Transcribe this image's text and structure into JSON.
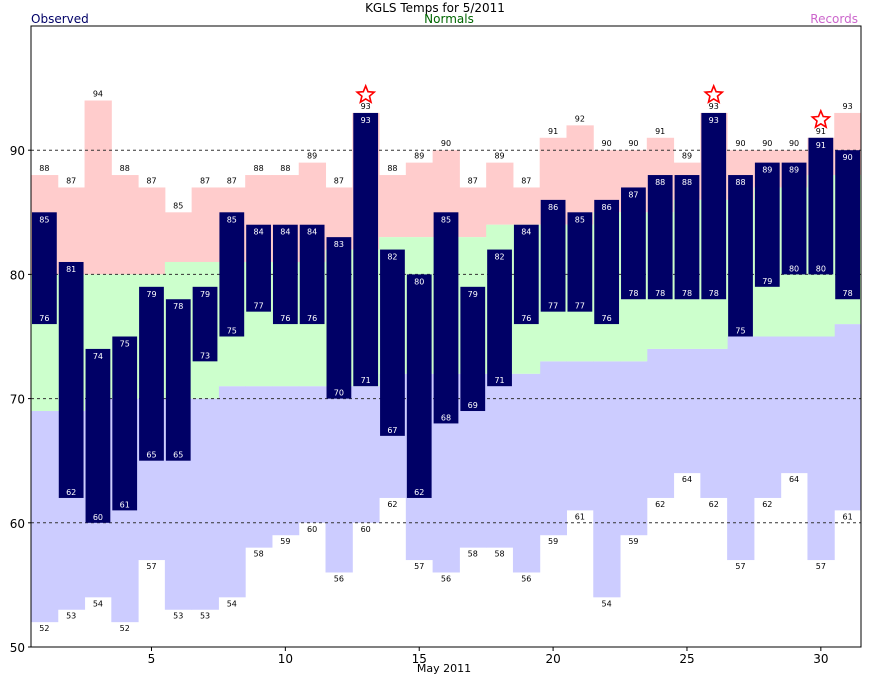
{
  "chart_data": {
    "type": "bar",
    "title": "KGLS Temps for 5/2011",
    "legend": {
      "observed": "Observed",
      "normals": "Normals",
      "records": "Records"
    },
    "xlabel": "May 2011",
    "xlim": [
      1,
      31
    ],
    "ylim": [
      50,
      100
    ],
    "xticks": [
      5,
      10,
      15,
      20,
      25,
      30
    ],
    "yticks": [
      50,
      60,
      70,
      80,
      90
    ],
    "gridlines_y": [
      60,
      70,
      80,
      90
    ],
    "days": [
      1,
      2,
      3,
      4,
      5,
      6,
      7,
      8,
      9,
      10,
      11,
      12,
      13,
      14,
      15,
      16,
      17,
      18,
      19,
      20,
      21,
      22,
      23,
      24,
      25,
      26,
      27,
      28,
      29,
      30,
      31
    ],
    "observed_high": [
      85,
      81,
      74,
      75,
      79,
      78,
      79,
      85,
      84,
      84,
      84,
      83,
      93,
      82,
      80,
      85,
      79,
      82,
      84,
      86,
      85,
      86,
      87,
      88,
      88,
      93,
      88,
      89,
      89,
      91,
      90
    ],
    "observed_low": [
      76,
      62,
      60,
      61,
      65,
      65,
      73,
      75,
      77,
      76,
      76,
      70,
      71,
      67,
      62,
      68,
      69,
      71,
      76,
      77,
      77,
      76,
      78,
      78,
      78,
      78,
      75,
      79,
      80,
      80,
      78
    ],
    "record_high": [
      88,
      87,
      94,
      88,
      87,
      85,
      87,
      87,
      88,
      88,
      89,
      87,
      93,
      88,
      89,
      90,
      87,
      89,
      87,
      91,
      92,
      90,
      90,
      91,
      89,
      93,
      90,
      90,
      90,
      91,
      93
    ],
    "record_low": [
      52,
      53,
      54,
      52,
      57,
      53,
      53,
      54,
      58,
      59,
      60,
      56,
      60,
      62,
      57,
      56,
      58,
      58,
      56,
      59,
      61,
      54,
      59,
      62,
      64,
      62,
      57,
      62,
      64,
      57,
      61
    ],
    "normal_high": [
      80,
      80,
      80,
      80,
      80,
      81,
      81,
      81,
      81,
      81,
      81,
      82,
      82,
      83,
      83,
      83,
      83,
      84,
      84,
      84,
      84,
      85,
      85,
      85,
      86,
      86,
      86,
      87,
      87,
      88,
      88
    ],
    "normal_low": [
      69,
      69,
      70,
      70,
      70,
      70,
      70,
      71,
      71,
      71,
      71,
      71,
      71,
      72,
      72,
      72,
      72,
      72,
      72,
      73,
      73,
      73,
      73,
      74,
      74,
      74,
      75,
      75,
      75,
      75,
      76
    ],
    "record_set_days": [
      13,
      26,
      30
    ],
    "colors": {
      "observed": "#000066",
      "records_high_fill": "#ffcccc",
      "records_low_fill": "#ccccff",
      "normals_fill": "#ccffcc",
      "legend_observed": "#000066",
      "legend_normals": "#006600",
      "legend_records": "#cc66cc",
      "star": "#ff0000"
    }
  }
}
